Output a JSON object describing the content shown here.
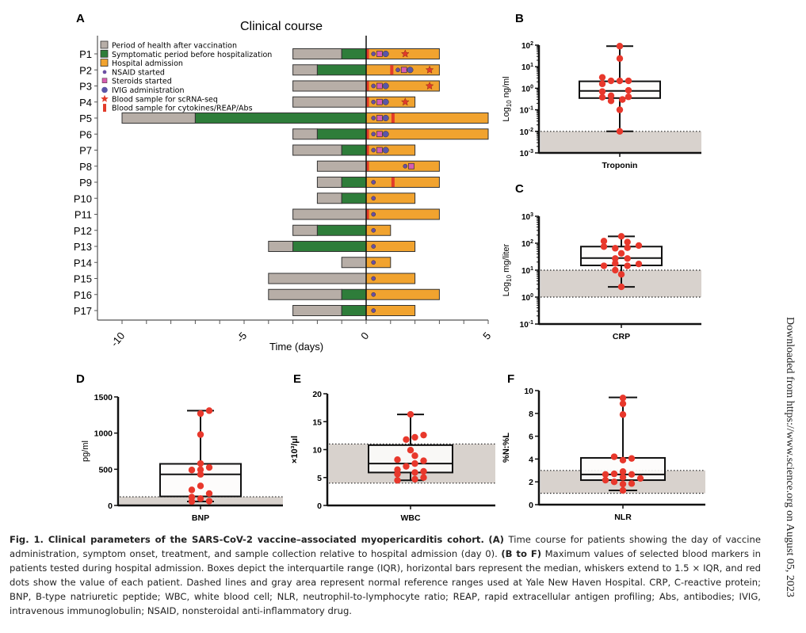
{
  "figure": {
    "panels": [
      "A",
      "B",
      "C",
      "D",
      "E",
      "F"
    ]
  },
  "colors": {
    "health": "#b7aea7",
    "symptom": "#2e7d3a",
    "hospital": "#f1a32f",
    "nsaid": "#6a4fa3",
    "steroid": "#d65cb0",
    "ivig": "#5a56a8",
    "star": "#e23b2a",
    "cytokine": "#e23b2a",
    "dot": "#e8382c",
    "refband": "#d8d2cd"
  },
  "chart_data": [
    {
      "id": "A",
      "type": "timeline",
      "title": "Clinical course",
      "xlabel": "Time (days)",
      "xlim": [
        -11,
        5
      ],
      "xticks": [
        -10,
        -5,
        0,
        5
      ],
      "legend": [
        {
          "key": "health",
          "label": "Period of health after vaccination",
          "shape": "square"
        },
        {
          "key": "symptom",
          "label": "Symptomatic period before hospitalization",
          "shape": "square"
        },
        {
          "key": "hospital",
          "label": "Hospital admission",
          "shape": "square"
        },
        {
          "key": "nsaid",
          "label": "NSAID started",
          "shape": "dot"
        },
        {
          "key": "steroid",
          "label": "Steroids started",
          "shape": "square-small"
        },
        {
          "key": "ivig",
          "label": "IVIG administration",
          "shape": "hexagon"
        },
        {
          "key": "star",
          "label": "Blood sample for scRNA-seq",
          "shape": "star"
        },
        {
          "key": "cytokine",
          "label": "Blood sample for cytokines/REAP/Abs",
          "shape": "bar"
        }
      ],
      "patients": [
        {
          "id": "P1",
          "health": [
            -3,
            -1
          ],
          "symptom": [
            -1,
            0
          ],
          "hospital": [
            0,
            3
          ],
          "cytokine": 0.05,
          "nsaid": 0.3,
          "steroid": 0.55,
          "ivig": 0.8,
          "star": 1.6
        },
        {
          "id": "P2",
          "health": [
            -3,
            -2
          ],
          "symptom": [
            -2,
            0
          ],
          "hospital": [
            0,
            3
          ],
          "cytokine": 1.05,
          "nsaid": 1.3,
          "steroid": 1.55,
          "ivig": 1.8,
          "star": 2.6
        },
        {
          "id": "P3",
          "health": [
            -3,
            0
          ],
          "symptom": null,
          "hospital": [
            0,
            3
          ],
          "cytokine": 0.05,
          "nsaid": 0.3,
          "steroid": 0.55,
          "ivig": 0.8,
          "star": 2.6
        },
        {
          "id": "P4",
          "health": [
            -3,
            0
          ],
          "symptom": null,
          "hospital": [
            0,
            2
          ],
          "cytokine": 0.05,
          "nsaid": 0.3,
          "steroid": 0.55,
          "ivig": 0.8,
          "star": 1.6
        },
        {
          "id": "P5",
          "health": [
            -10,
            -7
          ],
          "symptom": [
            -7,
            0
          ],
          "hospital": [
            0,
            5
          ],
          "cytokine": 1.1,
          "nsaid": 0.3,
          "steroid": 0.55,
          "ivig": 0.8,
          "star": null
        },
        {
          "id": "P6",
          "health": [
            -3,
            -2
          ],
          "symptom": [
            -2,
            0
          ],
          "hospital": [
            0,
            5
          ],
          "cytokine": 0.05,
          "nsaid": 0.3,
          "steroid": 0.55,
          "ivig": 0.8,
          "star": null
        },
        {
          "id": "P7",
          "health": [
            -3,
            -1
          ],
          "symptom": [
            -1,
            0
          ],
          "hospital": [
            0,
            2
          ],
          "cytokine": 0.05,
          "nsaid": 0.3,
          "steroid": 0.55,
          "ivig": 0.8,
          "star": null
        },
        {
          "id": "P8",
          "health": [
            -2,
            0
          ],
          "symptom": null,
          "hospital": [
            0,
            3
          ],
          "cytokine": 0.05,
          "nsaid": 1.6,
          "steroid": 1.85,
          "ivig": null,
          "star": null
        },
        {
          "id": "P9",
          "health": [
            -2,
            -1
          ],
          "symptom": [
            -1,
            0
          ],
          "hospital": [
            0,
            3
          ],
          "cytokine": 1.1,
          "nsaid": 0.3,
          "steroid": null,
          "ivig": null,
          "star": null
        },
        {
          "id": "P10",
          "health": [
            -2,
            -1
          ],
          "symptom": [
            -1,
            0
          ],
          "hospital": [
            0,
            2
          ],
          "cytokine": null,
          "nsaid": 0.3,
          "steroid": null,
          "ivig": null,
          "star": null
        },
        {
          "id": "P11",
          "health": [
            -3,
            0
          ],
          "symptom": null,
          "hospital": [
            0,
            3
          ],
          "cytokine": 0.05,
          "nsaid": 0.3,
          "steroid": null,
          "ivig": null,
          "star": null
        },
        {
          "id": "P12",
          "health": [
            -3,
            -2
          ],
          "symptom": [
            -2,
            0
          ],
          "hospital": [
            0,
            1
          ],
          "cytokine": null,
          "nsaid": 0.3,
          "steroid": null,
          "ivig": null,
          "star": null
        },
        {
          "id": "P13",
          "health": [
            -4,
            -3
          ],
          "symptom": [
            -3,
            0
          ],
          "hospital": [
            0,
            2
          ],
          "cytokine": null,
          "nsaid": 0.3,
          "steroid": null,
          "ivig": null,
          "star": null
        },
        {
          "id": "P14",
          "health": [
            -1,
            0
          ],
          "symptom": null,
          "hospital": [
            0,
            1
          ],
          "cytokine": null,
          "nsaid": 0.3,
          "steroid": null,
          "ivig": null,
          "star": null
        },
        {
          "id": "P15",
          "health": [
            -4,
            0
          ],
          "symptom": null,
          "hospital": [
            0,
            2
          ],
          "cytokine": null,
          "nsaid": 0.3,
          "steroid": null,
          "ivig": null,
          "star": null
        },
        {
          "id": "P16",
          "health": [
            -4,
            -1
          ],
          "symptom": [
            -1,
            0
          ],
          "hospital": [
            0,
            3
          ],
          "cytokine": null,
          "nsaid": 0.3,
          "steroid": null,
          "ivig": null,
          "star": null
        },
        {
          "id": "P17",
          "health": [
            -3,
            -1
          ],
          "symptom": [
            -1,
            0
          ],
          "hospital": [
            0,
            2
          ],
          "cytokine": null,
          "nsaid": 0.3,
          "steroid": null,
          "ivig": null,
          "star": null
        }
      ]
    },
    {
      "id": "B",
      "type": "box",
      "scale": "log",
      "category": "Troponin",
      "ylabel": "Log10 ng/ml",
      "ylim": [
        0.001,
        100
      ],
      "yticks": [
        "10^2",
        "10^1",
        "10^0",
        "10^-1",
        "10^-2",
        "10^-3"
      ],
      "reference": [
        0.001,
        0.01
      ],
      "box": {
        "q1": 0.35,
        "median": 0.75,
        "q3": 2.1,
        "whisker_low": 0.01,
        "whisker_high": 90
      },
      "points": [
        {
          "v": 90,
          "j": 0
        },
        {
          "v": 24,
          "j": 0
        },
        {
          "v": 3.2,
          "j": -2
        },
        {
          "v": 2.2,
          "j": -1
        },
        {
          "v": 2.2,
          "j": 0
        },
        {
          "v": 2.2,
          "j": 1
        },
        {
          "v": 1.6,
          "j": -2
        },
        {
          "v": 0.8,
          "j": 1
        },
        {
          "v": 0.7,
          "j": -2
        },
        {
          "v": 0.45,
          "j": -1
        },
        {
          "v": 0.4,
          "j": 1
        },
        {
          "v": 0.38,
          "j": -2
        },
        {
          "v": 0.3,
          "j": 0.3
        },
        {
          "v": 0.26,
          "j": -1
        },
        {
          "v": 0.1,
          "j": 0
        },
        {
          "v": 0.01,
          "j": 0
        }
      ]
    },
    {
      "id": "C",
      "type": "box",
      "scale": "log",
      "category": "CRP",
      "ylabel": "Log10 mg/liter",
      "ylim": [
        0.1,
        1000
      ],
      "yticks": [
        "10^3",
        "10^2",
        "10^1",
        "10^0",
        "10^-1"
      ],
      "reference": [
        1,
        10
      ],
      "box": {
        "q1": 15,
        "median": 28,
        "q3": 75,
        "whisker_low": 2.4,
        "whisker_high": 180
      },
      "points": [
        {
          "v": 180,
          "j": 0
        },
        {
          "v": 120,
          "j": -2
        },
        {
          "v": 110,
          "j": 0.7
        },
        {
          "v": 82,
          "j": 2
        },
        {
          "v": 75,
          "j": -2
        },
        {
          "v": 65,
          "j": -0.7
        },
        {
          "v": 68,
          "j": 0.7
        },
        {
          "v": 42,
          "j": 0
        },
        {
          "v": 27,
          "j": -0.7
        },
        {
          "v": 27,
          "j": 0.7
        },
        {
          "v": 18,
          "j": -0.7
        },
        {
          "v": 17,
          "j": 2
        },
        {
          "v": 14.5,
          "j": -2
        },
        {
          "v": 14.5,
          "j": 0.7
        },
        {
          "v": 10,
          "j": -0.7
        },
        {
          "v": 7,
          "j": 0
        },
        {
          "v": 2.4,
          "j": 0
        }
      ]
    },
    {
      "id": "D",
      "type": "box",
      "scale": "linear",
      "category": "BNP",
      "ylabel": "pg/ml",
      "ylim": [
        0,
        1500
      ],
      "yticks": [
        "1500",
        "1000",
        "500",
        "0"
      ],
      "reference": [
        0,
        120
      ],
      "box": {
        "q1": 125,
        "median": 430,
        "q3": 575,
        "whisker_low": 55,
        "whisker_high": 1310
      },
      "points": [
        {
          "v": 1310,
          "j": 1
        },
        {
          "v": 1270,
          "j": 0
        },
        {
          "v": 980,
          "j": 0
        },
        {
          "v": 580,
          "j": 0
        },
        {
          "v": 525,
          "j": 1
        },
        {
          "v": 490,
          "j": -1
        },
        {
          "v": 495,
          "j": 0
        },
        {
          "v": 430,
          "j": 0
        },
        {
          "v": 270,
          "j": 0
        },
        {
          "v": 215,
          "j": -1
        },
        {
          "v": 165,
          "j": 1
        },
        {
          "v": 115,
          "j": -1
        },
        {
          "v": 95,
          "j": 0
        },
        {
          "v": 60,
          "j": 1
        },
        {
          "v": 55,
          "j": -1
        }
      ]
    },
    {
      "id": "E",
      "type": "box",
      "scale": "linear",
      "category": "WBC",
      "ylabel": "×10³/μl",
      "ylim": [
        0,
        20
      ],
      "yticks": [
        "20",
        "15",
        "10",
        "5",
        "0"
      ],
      "reference": [
        4,
        11
      ],
      "box": {
        "q1": 5.9,
        "median": 7.5,
        "q3": 10.8,
        "whisker_low": 4.5,
        "whisker_high": 16.3
      },
      "points": [
        {
          "v": 16.3,
          "j": 0
        },
        {
          "v": 12.6,
          "j": 1.5
        },
        {
          "v": 12.2,
          "j": 0.5
        },
        {
          "v": 11.8,
          "j": -0.5
        },
        {
          "v": 9.9,
          "j": 0
        },
        {
          "v": 8.9,
          "j": 0.5
        },
        {
          "v": 8.2,
          "j": -1.5
        },
        {
          "v": 8.0,
          "j": 1.5
        },
        {
          "v": 7.5,
          "j": 0.5
        },
        {
          "v": 7.0,
          "j": -0.5
        },
        {
          "v": 6.4,
          "j": -1.5
        },
        {
          "v": 6.1,
          "j": 1.5
        },
        {
          "v": 5.9,
          "j": 0.5
        },
        {
          "v": 5.6,
          "j": -1.5
        },
        {
          "v": 5.0,
          "j": 1.5
        },
        {
          "v": 4.7,
          "j": 0.5
        },
        {
          "v": 4.5,
          "j": -1.5
        }
      ]
    },
    {
      "id": "F",
      "type": "box",
      "scale": "linear",
      "category": "NLR",
      "ylabel": "%N:%L",
      "ylim": [
        0,
        10
      ],
      "yticks": [
        "10",
        "8",
        "6",
        "4",
        "2",
        "0"
      ],
      "reference": [
        1,
        3
      ],
      "box": {
        "q1": 2.15,
        "median": 2.65,
        "q3": 4.1,
        "whisker_low": 1.25,
        "whisker_high": 9.4
      },
      "points": [
        {
          "v": 9.35,
          "j": 0
        },
        {
          "v": 8.85,
          "j": 0
        },
        {
          "v": 7.9,
          "j": 0
        },
        {
          "v": 4.2,
          "j": -1
        },
        {
          "v": 4.05,
          "j": 1
        },
        {
          "v": 3.9,
          "j": 0
        },
        {
          "v": 2.9,
          "j": 0
        },
        {
          "v": 2.7,
          "j": -1
        },
        {
          "v": 2.65,
          "j": -2
        },
        {
          "v": 2.65,
          "j": 1
        },
        {
          "v": 2.4,
          "j": 0
        },
        {
          "v": 2.3,
          "j": 2
        },
        {
          "v": 2.15,
          "j": -2
        },
        {
          "v": 2.0,
          "j": -1
        },
        {
          "v": 1.85,
          "j": 1
        },
        {
          "v": 1.8,
          "j": 0
        },
        {
          "v": 1.25,
          "j": 0
        }
      ]
    }
  ],
  "caption": {
    "title": "Fig. 1. Clinical parameters of the SARS-CoV-2 vaccine–associated myopericarditis cohort.",
    "parts": [
      {
        "b": "(A)",
        "t": " Time course for patients showing the day of vaccine administration, symptom onset, treatment, and sample collection relative to hospital admission (day 0). "
      },
      {
        "b": "(B to F)",
        "t": " Maximum values of selected blood markers in patients tested during hospital admission. Boxes depict the interquartile range (IQR), horizontal bars represent the median, whiskers extend to 1.5 × IQR, and red dots show the value of each patient. Dashed lines and gray area represent normal reference ranges used at Yale New Haven Hospital. CRP, C-reactive protein; BNP, B-type natriuretic peptide; WBC, white blood cell; NLR, neutrophil-to-lymphocyte ratio; REAP, rapid extracellular antigen profiling; Abs, antibodies; IVIG, intravenous immunoglobulin; NSAID, nonsteroidal anti-inflammatory drug."
      }
    ]
  },
  "side_note": "Downloaded from https://www.science.org on August 05, 2023"
}
